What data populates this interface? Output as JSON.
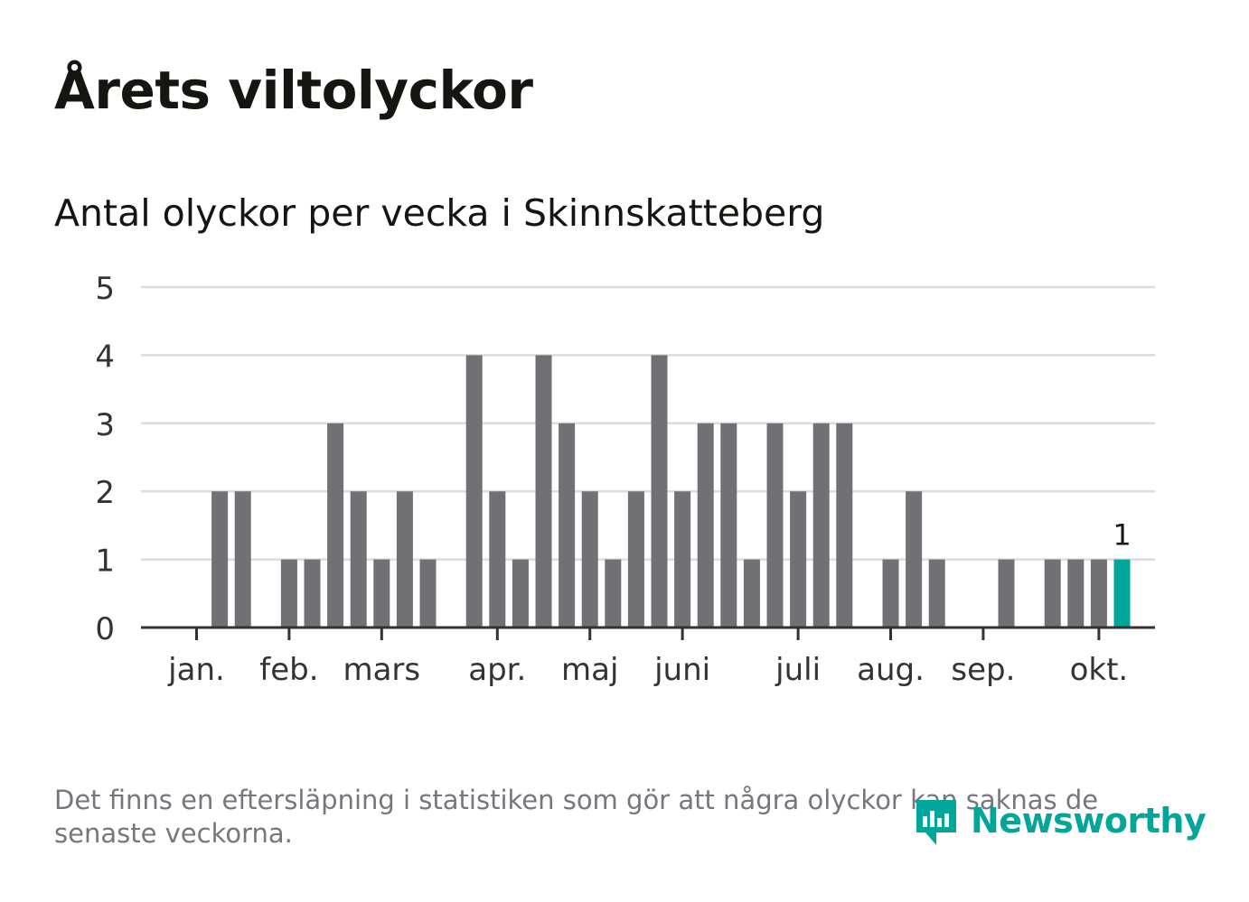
{
  "header": {
    "title": "Årets viltolyckor"
  },
  "chart_data": {
    "type": "bar",
    "title": "Antal olyckor per vecka i Skinnskatteberg",
    "xlabel": "",
    "ylabel": "",
    "ylim": [
      0,
      5
    ],
    "y_ticks": [
      "0",
      "1",
      "2",
      "3",
      "4",
      "5"
    ],
    "month_labels": [
      "jan.",
      "feb.",
      "mars",
      "apr.",
      "maj",
      "juni",
      "juli",
      "aug.",
      "sep.",
      "okt."
    ],
    "month_label_week_index": [
      0,
      4,
      8,
      13,
      17,
      21,
      26,
      30,
      34,
      39
    ],
    "week_count": 41,
    "values": [
      0,
      2,
      2,
      0,
      1,
      1,
      3,
      2,
      1,
      2,
      1,
      0,
      4,
      2,
      1,
      4,
      3,
      2,
      1,
      2,
      4,
      2,
      3,
      3,
      1,
      3,
      2,
      3,
      3,
      0,
      1,
      2,
      1,
      0,
      0,
      1,
      0,
      1,
      1,
      1,
      1
    ],
    "highlight_index": 40,
    "highlight_label": "1",
    "colors": {
      "bar": "#707075",
      "highlight": "#00a69a",
      "grid": "#dcdcdc",
      "axis": "#333333"
    }
  },
  "footer": {
    "note": "Det finns en eftersläpning i statistiken som gör att några olyckor kan saknas de senaste veckorna.",
    "brand": "Newsworthy",
    "brand_icon": "newsworthy-logo-icon"
  }
}
